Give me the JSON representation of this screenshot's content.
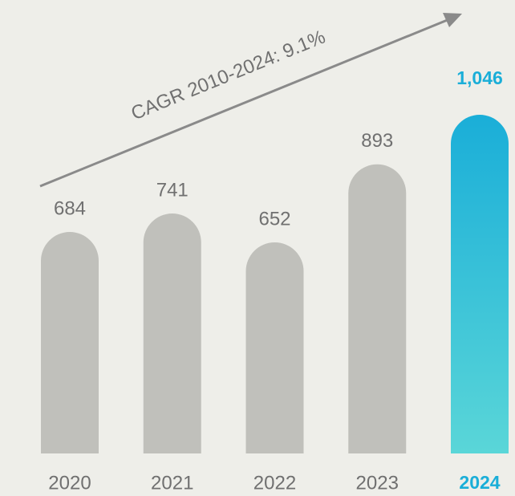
{
  "chart_data": {
    "type": "bar",
    "categories": [
      "2020",
      "2021",
      "2022",
      "2023",
      "2024"
    ],
    "values": [
      684,
      741,
      652,
      893,
      1046
    ],
    "value_labels": [
      "684",
      "741",
      "652",
      "893",
      "1,046"
    ],
    "colors": [
      "#c0c0bb",
      "#c0c0bb",
      "#c0c0bb",
      "#c0c0bb",
      "#1aaed8"
    ],
    "annotation": "CAGR 2010-2024: 9.1%"
  }
}
